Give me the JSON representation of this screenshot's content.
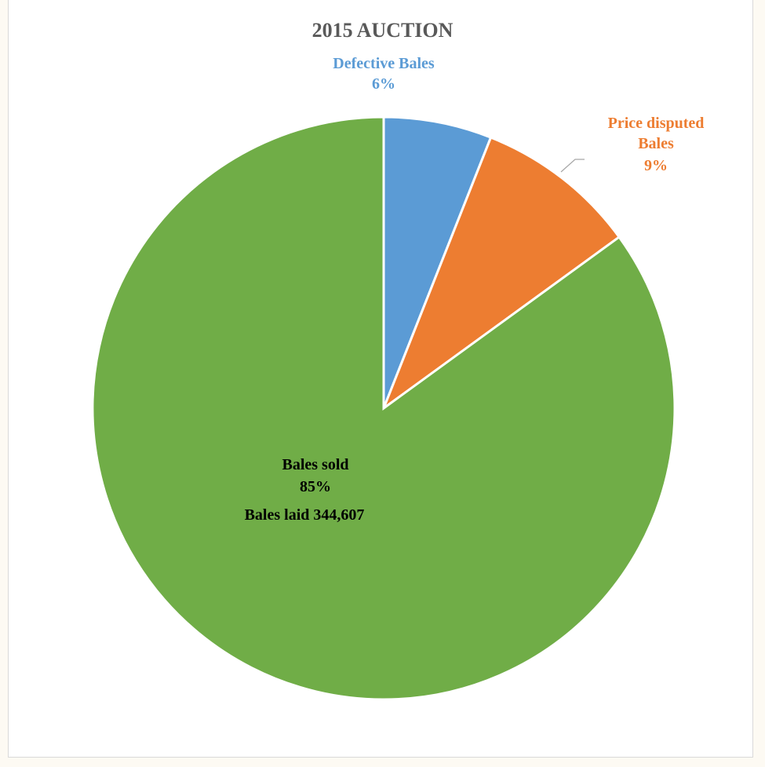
{
  "chart_data": {
    "type": "pie",
    "title": "2015 AUCTION",
    "slices": [
      {
        "name": "Defective Bales",
        "value": 6,
        "label": "6%",
        "color": "#5b9bd5",
        "text_color": "#5b9bd5"
      },
      {
        "name": "Price disputed Bales",
        "value": 9,
        "label": "9%",
        "color": "#ed7d31",
        "text_color": "#ed7d31"
      },
      {
        "name": "Bales sold",
        "value": 85,
        "label": "85%",
        "color": "#70ad47",
        "text_color": "#000000"
      }
    ],
    "annotation": "Bales laid 344,607"
  }
}
